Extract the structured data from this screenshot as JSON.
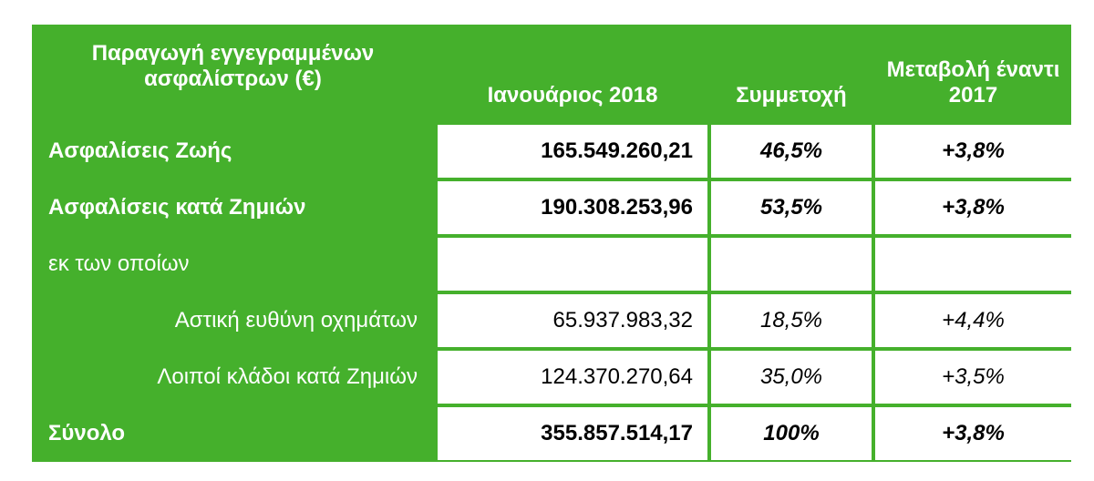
{
  "table": {
    "header": [
      "Παραγωγή εγγεγραμμένων ασφαλίστρων (€)",
      "Ιανουάριος 2018",
      "Συμμετοχή",
      "Μεταβολή έναντι 2017"
    ],
    "rows": [
      [
        "Ασφαλίσεις Ζωής",
        "165.549.260,21",
        "46,5%",
        "+3,8%"
      ],
      [
        "Ασφαλίσεις κατά Ζημιών",
        "190.308.253,96",
        "53,5%",
        "+3,8%"
      ],
      [
        "εκ των οποίων"
      ],
      [
        "Αστική ευθύνη οχημάτων",
        "65.937.983,32",
        "18,5%",
        "+4,4%"
      ],
      [
        "Λοιποί κλάδοι κατά Ζημιών",
        "124.370.270,64",
        "35,0%",
        "+3,5%"
      ],
      [
        "Σύνολο",
        "355.857.514,17",
        "100%",
        "+3,8%"
      ]
    ]
  }
}
